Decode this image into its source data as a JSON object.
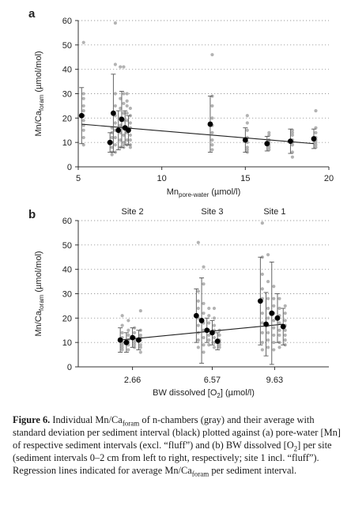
{
  "figure": {
    "panels": [
      {
        "letter": "a"
      },
      {
        "letter": "b"
      }
    ]
  },
  "caption": {
    "label": "Figure 6.",
    "parts": [
      " Individual Mn/Ca",
      "foram",
      " of n-chambers (gray) and their average with standard deviation per sediment interval (black) plotted against (a) pore-water [Mn] of respective sediment intervals (excl. “fluff”) and (b) BW dissolved [O",
      "2",
      "] per site (sediment intervals 0–2 cm from left to right, respectively; site 1 incl. “fluff”). Regression lines indicated for average Mn/Ca",
      "foram",
      " per sediment interval."
    ]
  },
  "colors": {
    "individual": "#a6a6a6",
    "average": "#000000",
    "grid": "#9a9a9a",
    "regression": "#222222"
  },
  "chart_data": [
    {
      "type": "scatter",
      "panel": "a",
      "title": "",
      "ylabel": {
        "main": "Mn/Ca",
        "sub": "foram",
        "unit": " (µmol/mol)"
      },
      "xlabel": {
        "main": "Mn",
        "sub": "pore-water",
        "unit": " (µmol/l)"
      },
      "xlim": [
        5,
        20
      ],
      "ylim": [
        0,
        60
      ],
      "xticks": [
        5,
        10,
        15,
        20
      ],
      "yticks": [
        0,
        10,
        20,
        30,
        40,
        50,
        60
      ],
      "grid": "horizontal dotted",
      "individual": [
        {
          "x": 5.2,
          "y": [
            51,
            30,
            28,
            25,
            23,
            21,
            19,
            17,
            15,
            12,
            9
          ]
        },
        {
          "x": 6.9,
          "y": [
            16,
            14,
            12,
            10,
            8,
            6,
            5
          ]
        },
        {
          "x": 7.1,
          "y": [
            59,
            42,
            30,
            25,
            21,
            18,
            15,
            12,
            9,
            6
          ]
        },
        {
          "x": 7.4,
          "y": [
            41,
            28,
            24,
            20,
            17,
            14,
            11,
            8
          ]
        },
        {
          "x": 7.6,
          "y": [
            41,
            30,
            26,
            22,
            19,
            16,
            13,
            10,
            8
          ]
        },
        {
          "x": 7.8,
          "y": [
            30,
            27,
            25,
            22,
            19,
            16,
            14,
            11,
            9
          ]
        },
        {
          "x": 8.0,
          "y": [
            24,
            21,
            18,
            16,
            13,
            11,
            9,
            8
          ]
        },
        {
          "x": 12.9,
          "y": [
            46,
            29,
            25,
            20,
            17,
            14,
            11,
            9,
            7
          ]
        },
        {
          "x": 15.0,
          "y": [
            21,
            18,
            15,
            12,
            10,
            8,
            7,
            6
          ]
        },
        {
          "x": 16.3,
          "y": [
            14,
            13,
            11,
            10,
            9,
            8,
            7
          ]
        },
        {
          "x": 17.7,
          "y": [
            15,
            14,
            13,
            11,
            10,
            9,
            6,
            4
          ]
        },
        {
          "x": 19.1,
          "y": [
            23,
            16,
            14,
            12,
            11,
            10,
            9,
            8
          ]
        }
      ],
      "averages": [
        {
          "x": 5.2,
          "y": 21,
          "sd": 11.5
        },
        {
          "x": 6.9,
          "y": 10,
          "sd": 4
        },
        {
          "x": 7.1,
          "y": 22,
          "sd": 16
        },
        {
          "x": 7.4,
          "y": 15,
          "sd": 8
        },
        {
          "x": 7.6,
          "y": 19.5,
          "sd": 11.5
        },
        {
          "x": 7.8,
          "y": 16,
          "sd": 7
        },
        {
          "x": 8.0,
          "y": 15,
          "sd": 6
        },
        {
          "x": 12.9,
          "y": 17.5,
          "sd": 11.5
        },
        {
          "x": 15.0,
          "y": 11,
          "sd": 5
        },
        {
          "x": 16.3,
          "y": 9.5,
          "sd": 3
        },
        {
          "x": 17.7,
          "y": 10.5,
          "sd": 5
        },
        {
          "x": 19.1,
          "y": 11.5,
          "sd": 4
        }
      ],
      "regression": {
        "x": [
          5.2,
          19.1
        ],
        "y": [
          17.5,
          9.5
        ]
      }
    },
    {
      "type": "scatter",
      "panel": "b",
      "title": "",
      "ylabel": {
        "main": "Mn/Ca",
        "sub": "foram",
        "unit": " (µmol/mol)"
      },
      "xlabel": {
        "main": "BW dissolved [O",
        "sub": "2",
        "unit": "] (µmol/l)"
      },
      "xlim": [
        0,
        12.29
      ],
      "ylim": [
        0,
        60
      ],
      "xticks": [
        2.66,
        6.57,
        9.63
      ],
      "yticks": [
        0,
        10,
        20,
        30,
        40,
        50,
        60
      ],
      "grid": "horizontal dotted",
      "site_labels": [
        {
          "label": "Site 2",
          "x": 2.66
        },
        {
          "label": "Site 3",
          "x": 6.57
        },
        {
          "label": "Site 1",
          "x": 9.63
        }
      ],
      "individual": [
        {
          "x": 2.06,
          "y": [
            21,
            17,
            14,
            12,
            10,
            9,
            8,
            7
          ]
        },
        {
          "x": 2.36,
          "y": [
            19,
            15,
            13,
            11,
            10,
            9,
            7
          ]
        },
        {
          "x": 2.66,
          "y": [
            16,
            14,
            12,
            11,
            10,
            9,
            8
          ]
        },
        {
          "x": 2.96,
          "y": [
            23,
            15,
            13,
            12,
            11,
            9,
            8,
            6
          ]
        },
        {
          "x": 5.79,
          "y": [
            51,
            31,
            27,
            24,
            20,
            17,
            14,
            11,
            8
          ]
        },
        {
          "x": 6.05,
          "y": [
            41,
            34,
            26,
            22,
            18,
            15,
            12,
            9,
            6
          ]
        },
        {
          "x": 6.31,
          "y": [
            24,
            21,
            18,
            15,
            13,
            11,
            9
          ]
        },
        {
          "x": 6.57,
          "y": [
            24,
            20,
            17,
            15,
            12,
            10,
            8
          ]
        },
        {
          "x": 6.83,
          "y": [
            15,
            13,
            11,
            10,
            9,
            8
          ]
        },
        {
          "x": 8.93,
          "y": [
            59,
            45,
            38,
            32,
            28,
            22,
            18,
            14,
            10,
            7
          ]
        },
        {
          "x": 9.21,
          "y": [
            46,
            35,
            28,
            24,
            20,
            17,
            14,
            11,
            8
          ]
        },
        {
          "x": 9.49,
          "y": [
            33,
            28,
            25,
            22,
            19,
            16,
            13,
            10,
            7
          ]
        },
        {
          "x": 9.77,
          "y": [
            28,
            24,
            21,
            18,
            15,
            13,
            10,
            8
          ]
        },
        {
          "x": 10.05,
          "y": [
            25,
            22,
            19,
            17,
            15,
            13,
            11,
            9
          ]
        }
      ],
      "averages": [
        {
          "x": 2.06,
          "y": 11,
          "sd": 5
        },
        {
          "x": 2.36,
          "y": 10,
          "sd": 4
        },
        {
          "x": 2.66,
          "y": 12,
          "sd": 4
        },
        {
          "x": 2.96,
          "y": 11,
          "sd": 4
        },
        {
          "x": 5.79,
          "y": 21,
          "sd": 11
        },
        {
          "x": 6.05,
          "y": 19,
          "sd": 17.5
        },
        {
          "x": 6.31,
          "y": 15,
          "sd": 5
        },
        {
          "x": 6.57,
          "y": 14,
          "sd": 5
        },
        {
          "x": 6.83,
          "y": 10.5,
          "sd": 3.5
        },
        {
          "x": 8.93,
          "y": 27,
          "sd": 18
        },
        {
          "x": 9.21,
          "y": 17.5,
          "sd": 13
        },
        {
          "x": 9.49,
          "y": 22,
          "sd": 21
        },
        {
          "x": 9.77,
          "y": 20,
          "sd": 10
        },
        {
          "x": 10.05,
          "y": 16.5,
          "sd": 7.5
        }
      ],
      "regression": {
        "x": [
          2.06,
          10.05
        ],
        "y": [
          11,
          17.5
        ]
      }
    }
  ]
}
